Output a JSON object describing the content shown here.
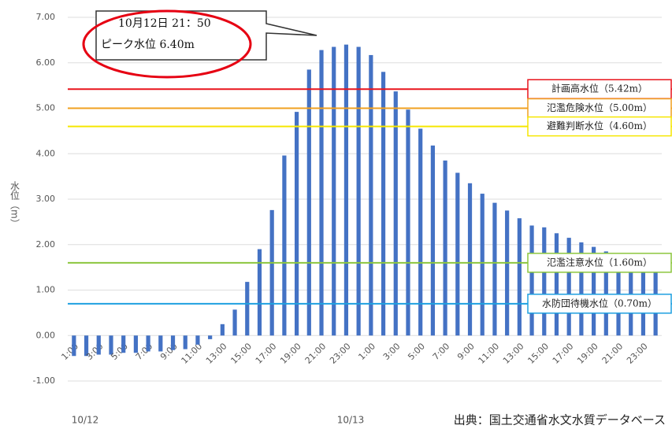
{
  "chart_data": {
    "type": "bar",
    "y_label": "水位（m）",
    "categories": [
      "1:00",
      null,
      "3:00",
      null,
      "5:00",
      null,
      "7:00",
      null,
      "9:00",
      null,
      "11:00",
      null,
      "13:00",
      null,
      "15:00",
      null,
      "17:00",
      null,
      "19:00",
      null,
      "21:00",
      null,
      "23:00",
      null,
      "1:00",
      null,
      "3:00",
      null,
      "5:00",
      null,
      "7:00",
      null,
      "9:00",
      null,
      "11:00",
      null,
      "13:00",
      null,
      "15:00",
      null,
      "17:00",
      null,
      "19:00",
      null,
      "21:00",
      null,
      "23:00",
      null
    ],
    "values": [
      -0.45,
      -0.45,
      -0.42,
      -0.42,
      -0.38,
      -0.38,
      -0.35,
      -0.35,
      -0.32,
      -0.3,
      -0.2,
      -0.08,
      0.25,
      0.57,
      1.18,
      1.9,
      2.76,
      3.96,
      4.92,
      5.85,
      6.28,
      6.35,
      6.4,
      6.35,
      6.17,
      5.8,
      5.37,
      4.97,
      4.55,
      4.18,
      3.85,
      3.58,
      3.35,
      3.12,
      2.92,
      2.75,
      2.58,
      2.42,
      2.38,
      2.25,
      2.15,
      2.05,
      1.95,
      1.85,
      1.75,
      1.65,
      1.58,
      1.5
    ],
    "color": "#4472c4",
    "ylim": [
      -1,
      7
    ],
    "yticks": [
      {
        "value": -1,
        "label": "-1.00"
      },
      {
        "value": 0,
        "label": "0.00"
      },
      {
        "value": 1,
        "label": "1.00"
      },
      {
        "value": 2,
        "label": "2.00"
      },
      {
        "value": 3,
        "label": "3.00"
      },
      {
        "value": 4,
        "label": "4.00"
      },
      {
        "value": 5,
        "label": "5.00"
      },
      {
        "value": 6,
        "label": "6.00"
      },
      {
        "value": 7,
        "label": "7.00"
      }
    ],
    "grid": true,
    "date_labels": [
      "10/12",
      "10/13"
    ],
    "reference_lines": [
      {
        "label": "計画高水位（5.42m）",
        "value": 5.42,
        "color": "#e8141c"
      },
      {
        "label": "氾濫危険水位（5.00m）",
        "value": 5.0,
        "color": "#f0a020"
      },
      {
        "label": "避難判断水位（4.60m）",
        "value": 4.6,
        "color": "#f5e600"
      },
      {
        "label": "氾濫注意水位（1.60m）",
        "value": 1.6,
        "color": "#8cc63e"
      },
      {
        "label": "水防団待機水位（0.70m）",
        "value": 0.7,
        "color": "#1ea0e0"
      }
    ],
    "annotation": [
      "10月12日 21：50",
      "ピーク水位 6.40m"
    ],
    "source": "出典：国土交通省水文水質データベース"
  }
}
